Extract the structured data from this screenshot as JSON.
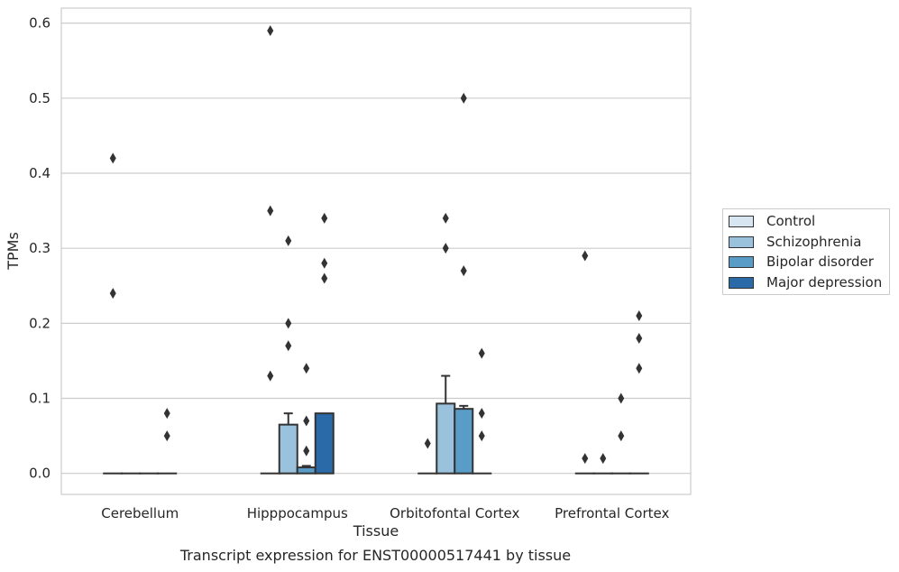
{
  "caption": "Transcript expression for ENST00000517441 by tissue",
  "chart_data": {
    "type": "bar",
    "title": "",
    "xlabel": "Tissue",
    "ylabel": "TPMs",
    "ylim": [
      -0.028,
      0.62
    ],
    "yticks": [
      0.0,
      0.1,
      0.2,
      0.3,
      0.4,
      0.5,
      0.6
    ],
    "ytick_labels": [
      "0.0",
      "0.1",
      "0.2",
      "0.3",
      "0.4",
      "0.5",
      "0.6"
    ],
    "grid": "horizontal",
    "legend_position": "right",
    "categories": [
      "Cerebellum",
      "Hipppocampus",
      "Orbitofontal Cortex",
      "Prefrontal Cortex"
    ],
    "series": [
      {
        "name": "Control",
        "color": "#d8e6f2",
        "values": [
          0.0,
          0.0,
          0.0,
          0.0
        ],
        "whisker": [
          0.0,
          0.0,
          0.0,
          0.0
        ],
        "outliers": [
          [
            0.42,
            0.24
          ],
          [
            0.59,
            0.35,
            0.13
          ],
          [
            0.04
          ],
          [
            0.29,
            0.02
          ]
        ]
      },
      {
        "name": "Schizophrenia",
        "color": "#9ac2dc",
        "values": [
          0.0,
          0.065,
          0.093,
          0.0
        ],
        "whisker": [
          0.0,
          0.08,
          0.13,
          0.0
        ],
        "outliers": [
          [],
          [
            0.31,
            0.2,
            0.17
          ],
          [
            0.34,
            0.3
          ],
          [
            0.02
          ]
        ]
      },
      {
        "name": "Bipolar disorder",
        "color": "#5a9cc8",
        "values": [
          0.0,
          0.008,
          0.086,
          0.0
        ],
        "whisker": [
          0.0,
          0.01,
          0.09,
          0.0
        ],
        "outliers": [
          [],
          [
            0.14,
            0.07,
            0.03
          ],
          [
            0.5,
            0.27
          ],
          [
            0.1,
            0.05
          ]
        ]
      },
      {
        "name": "Major depression",
        "color": "#2a6aa8",
        "values": [
          0.0,
          0.08,
          0.0,
          0.0
        ],
        "whisker": [
          0.0,
          0.08,
          0.0,
          0.0
        ],
        "outliers": [
          [
            0.08,
            0.05
          ],
          [
            0.34,
            0.28,
            0.26
          ],
          [
            0.16,
            0.08,
            0.05
          ],
          [
            0.21,
            0.18,
            0.14
          ]
        ]
      }
    ]
  }
}
